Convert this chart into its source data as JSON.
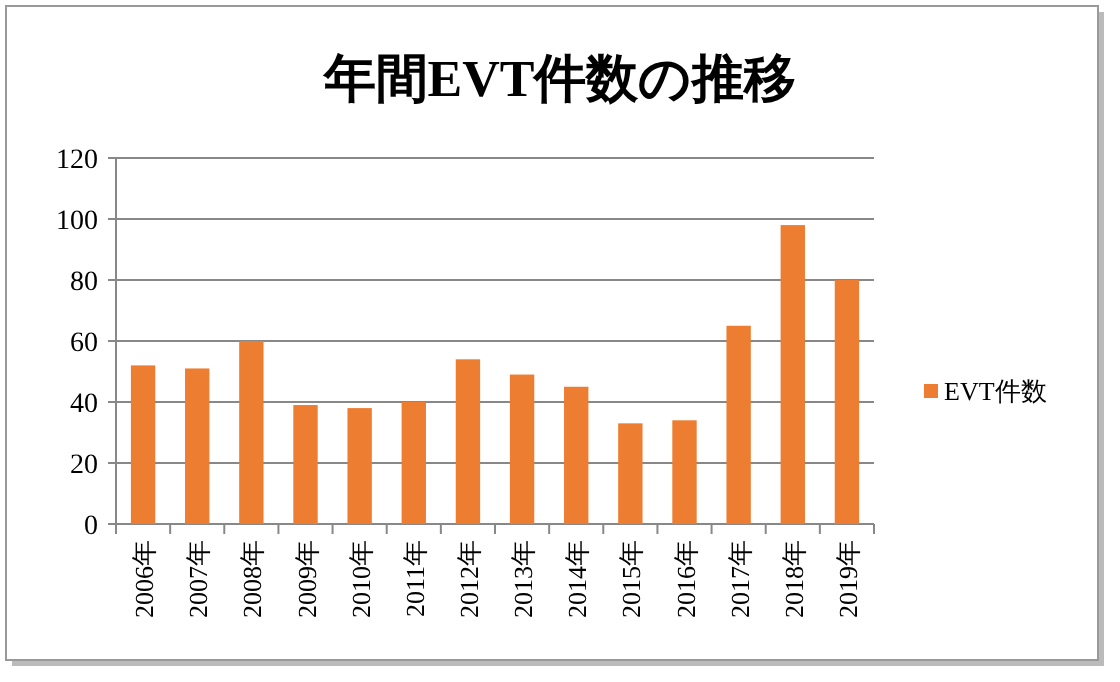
{
  "chart_data": {
    "type": "bar",
    "title": "年間EVT件数の推移",
    "categories": [
      "2006年",
      "2007年",
      "2008年",
      "2009年",
      "2010年",
      "2011年",
      "2012年",
      "2013年",
      "2014年",
      "2015年",
      "2016年",
      "2017年",
      "2018年",
      "2019年"
    ],
    "series": [
      {
        "name": "EVT件数",
        "color": "#ed7d31",
        "values": [
          52,
          51,
          60,
          39,
          38,
          40,
          54,
          49,
          45,
          33,
          34,
          65,
          98,
          80
        ]
      }
    ],
    "ylim": [
      0,
      120
    ],
    "yticks": [
      0,
      20,
      40,
      60,
      80,
      100,
      120
    ],
    "grid": "y",
    "legend": "right"
  }
}
